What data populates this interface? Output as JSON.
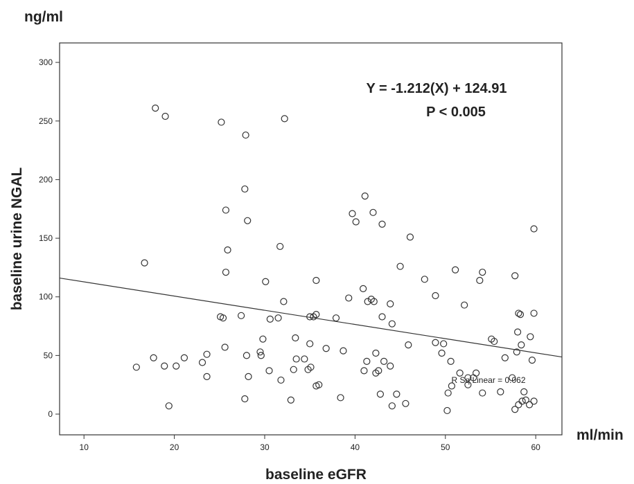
{
  "chart_data": {
    "type": "scatter",
    "y_unit": "ng/ml",
    "x_unit": "ml/min",
    "y_label": "baseline urine NGAL",
    "x_label": "baseline eGFR",
    "annotations": [
      "Y = -1.212(X) + 124.91",
      "P < 0.005",
      "R Sq Linear = 0.062"
    ],
    "marker_color": "#333333",
    "line_color": "#333333",
    "xlim": [
      7.3,
      62.9
    ],
    "ylim": [
      -17.7,
      316.6
    ],
    "xticks": [
      10,
      20,
      30,
      40,
      50,
      60
    ],
    "yticks": [
      0,
      50,
      100,
      150,
      200,
      250,
      300
    ],
    "x": [
      15.8,
      16.7,
      17.9,
      17.7,
      19.0,
      18.9,
      19.4,
      20.2,
      21.1,
      23.1,
      23.6,
      23.6,
      25.2,
      25.1,
      25.4,
      25.6,
      25.7,
      25.9,
      25.7,
      27.4,
      27.8,
      27.9,
      27.8,
      28.1,
      28.0,
      28.2,
      29.5,
      29.6,
      29.8,
      30.1,
      30.5,
      30.6,
      31.5,
      31.7,
      31.8,
      32.1,
      32.2,
      32.9,
      33.2,
      33.4,
      33.5,
      34.4,
      34.8,
      35.0,
      35.1,
      35.0,
      35.4,
      35.7,
      35.7,
      35.7,
      36.0,
      36.8,
      37.9,
      38.4,
      38.7,
      39.3,
      39.7,
      40.1,
      40.9,
      41.1,
      41.0,
      41.3,
      41.4,
      41.8,
      42.0,
      42.1,
      42.3,
      42.3,
      42.6,
      43.0,
      42.8,
      43.0,
      43.2,
      43.9,
      43.9,
      44.1,
      44.1,
      44.6,
      45.0,
      45.6,
      46.1,
      45.9,
      47.7,
      48.9,
      48.9,
      49.6,
      49.8,
      50.2,
      50.3,
      50.6,
      50.7,
      51.1,
      51.6,
      52.1,
      52.5,
      52.5,
      53.1,
      53.4,
      53.8,
      54.1,
      54.1,
      55.4,
      55.1,
      56.1,
      56.6,
      57.4,
      57.7,
      57.7,
      57.9,
      58.0,
      58.1,
      58.3,
      58.1,
      58.4,
      58.7,
      58.5,
      58.9,
      59.3,
      59.4,
      59.6,
      59.8,
      59.8,
      59.8
    ],
    "values": [
      40,
      129,
      261,
      48,
      254,
      41,
      7,
      41,
      48,
      44,
      51,
      32,
      249,
      83,
      82,
      57,
      174,
      140,
      121,
      84,
      192,
      238,
      13,
      165,
      50,
      32,
      53,
      50,
      64,
      113,
      37,
      81,
      82,
      143,
      29,
      96,
      252,
      12,
      38,
      65,
      47,
      47,
      38,
      60,
      40,
      83,
      83,
      85,
      114,
      24,
      25,
      56,
      82,
      14,
      54,
      99,
      171,
      164,
      107,
      186,
      37,
      45,
      96,
      98,
      172,
      96,
      52,
      35,
      37,
      162,
      17,
      83,
      45,
      94,
      41,
      77,
      7,
      17,
      126,
      9,
      151,
      59,
      115,
      101,
      61,
      52,
      60,
      3,
      18,
      45,
      24,
      123,
      35,
      93,
      25,
      31,
      31,
      35,
      114,
      121,
      18,
      62,
      64,
      19,
      48,
      31,
      118,
      4,
      53,
      70,
      86,
      85,
      8,
      59,
      19,
      11,
      12,
      8,
      66,
      46,
      86,
      11,
      158
    ],
    "fit_line": {
      "x": [
        7.3,
        62.9
      ],
      "values": [
        116.06,
        48.7
      ]
    }
  }
}
